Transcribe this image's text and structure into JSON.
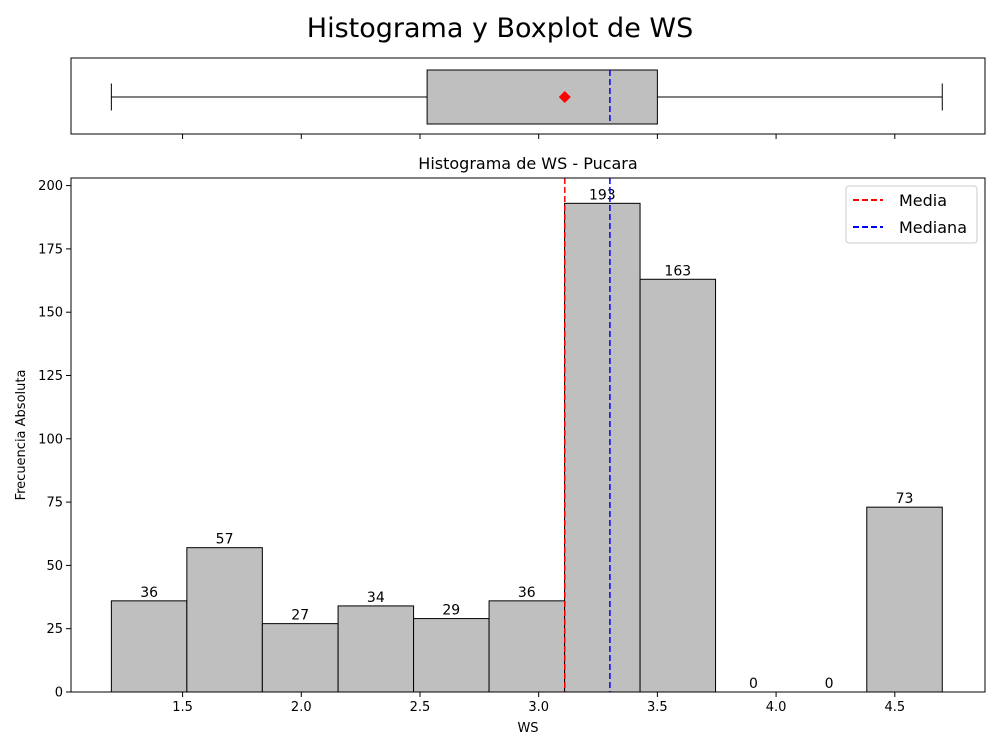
{
  "figure": {
    "title": "Histograma y Boxplot de WS",
    "background": "#ffffff"
  },
  "boxplot": {
    "whisker_low": 1.2,
    "q1": 2.53,
    "median": 3.3,
    "q3": 3.5,
    "whisker_high": 4.7,
    "mean": 3.11,
    "box_color": "#bfbfbf",
    "mean_marker_color": "#ff0000",
    "median_line_color": "#0000ff"
  },
  "chart_data": {
    "type": "bar",
    "title": "Histograma de WS - Pucara",
    "xlabel": "WS",
    "ylabel": "Frecuencia Absoluta",
    "xlim": [
      1.03,
      4.88
    ],
    "ylim": [
      0,
      203
    ],
    "xticks": [
      "1.5",
      "2.0",
      "2.5",
      "3.0",
      "3.5",
      "4.0",
      "4.5"
    ],
    "yticks": [
      "0",
      "25",
      "50",
      "75",
      "100",
      "125",
      "150",
      "175",
      "200"
    ],
    "bins": [
      {
        "start": 1.2,
        "end": 1.518,
        "value": 36
      },
      {
        "start": 1.518,
        "end": 1.836,
        "value": 57
      },
      {
        "start": 1.836,
        "end": 2.155,
        "value": 27
      },
      {
        "start": 2.155,
        "end": 2.473,
        "value": 34
      },
      {
        "start": 2.473,
        "end": 2.791,
        "value": 29
      },
      {
        "start": 2.791,
        "end": 3.109,
        "value": 36
      },
      {
        "start": 3.109,
        "end": 3.427,
        "value": 193
      },
      {
        "start": 3.427,
        "end": 3.745,
        "value": 163
      },
      {
        "start": 3.745,
        "end": 4.064,
        "value": 0
      },
      {
        "start": 4.064,
        "end": 4.382,
        "value": 0
      },
      {
        "start": 4.382,
        "end": 4.7,
        "value": 73
      }
    ],
    "mean": 3.11,
    "median": 3.3,
    "bar_color": "#bfbfbf",
    "mean_color": "#ff0000",
    "median_color": "#0000ff",
    "legend": {
      "placement": "top-right",
      "entries": [
        {
          "label": "Media",
          "color": "#ff0000"
        },
        {
          "label": "Mediana",
          "color": "#0000ff"
        }
      ]
    },
    "grid": false
  }
}
